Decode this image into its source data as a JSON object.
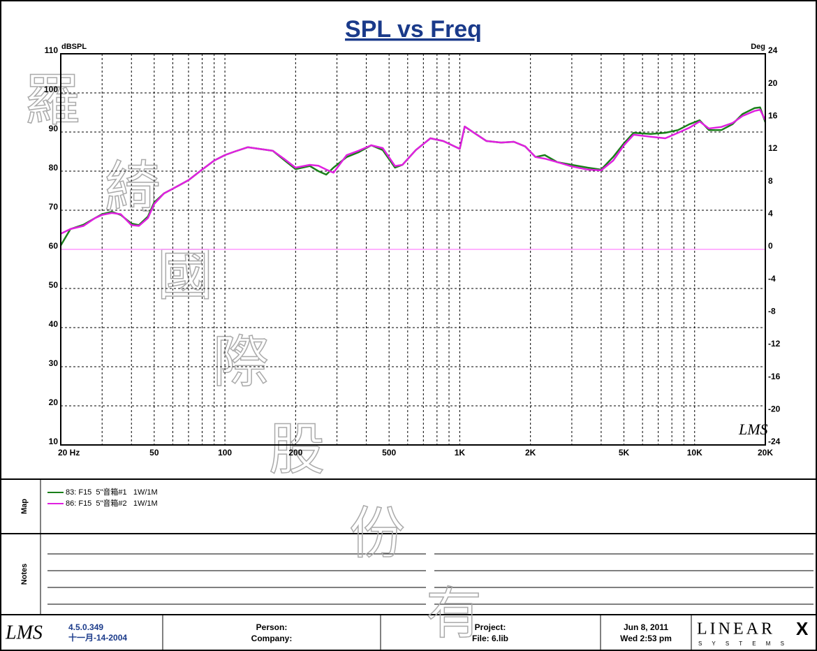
{
  "chart_data": {
    "type": "line",
    "title": "SPL vs Freq",
    "ylabel": "dBSPL",
    "y2label": "Deg",
    "logo": "LMS",
    "xscale": "log",
    "grid": true,
    "xlim": [
      20,
      20000
    ],
    "xticks": [
      {
        "value": 20,
        "label": "20  Hz"
      },
      50,
      100,
      200,
      500,
      {
        "value": 1000,
        "label": "1K"
      },
      {
        "value": 2000,
        "label": "2K"
      },
      {
        "value": 5000,
        "label": "5K"
      },
      {
        "value": 10000,
        "label": "10K"
      },
      {
        "value": 20000,
        "label": "20K"
      }
    ],
    "xminor": [
      30,
      40,
      60,
      70,
      80,
      90,
      300,
      400,
      600,
      700,
      800,
      900,
      3000,
      4000,
      6000,
      7000,
      8000,
      9000
    ],
    "ylim": [
      10,
      110
    ],
    "yticks": [
      10,
      20,
      30,
      40,
      50,
      60,
      70,
      80,
      90,
      100,
      110
    ],
    "y2lim": [
      -24,
      24
    ],
    "y2ticks": [
      -24,
      -20,
      -16,
      -12,
      -8,
      -4,
      0,
      4,
      8,
      12,
      16,
      20,
      24
    ],
    "y2_zero_color": "#ff99ff",
    "x": [
      20,
      22,
      25,
      28,
      30,
      33,
      36,
      40,
      43,
      47,
      50,
      55,
      60,
      70,
      80,
      90,
      100,
      110,
      125,
      140,
      160,
      180,
      200,
      230,
      250,
      270,
      290,
      330,
      370,
      420,
      470,
      530,
      570,
      650,
      750,
      850,
      1000,
      1050,
      1150,
      1300,
      1500,
      1700,
      1900,
      2100,
      2300,
      2600,
      3000,
      3500,
      4000,
      4500,
      5000,
      5500,
      6500,
      7500,
      8500,
      9500,
      10500,
      11500,
      13000,
      14500,
      16000,
      18000,
      19000,
      20000
    ],
    "series": [
      {
        "name": "83: F15  5\"音箱#1   1W/1M",
        "color": "#1a7f1a",
        "values": [
          61,
          65.2,
          66.3,
          68,
          69,
          69.6,
          68.8,
          66.6,
          66.2,
          68.4,
          72,
          74.3,
          75.5,
          77.7,
          80.4,
          82.7,
          84.1,
          85,
          86.1,
          85.7,
          85.2,
          82.7,
          80.5,
          81.3,
          80,
          79.1,
          80.9,
          83.6,
          84.8,
          86.6,
          85.4,
          80.9,
          81.6,
          85.4,
          88.4,
          87.7,
          85.7,
          91.4,
          89.8,
          87.7,
          87.3,
          87.5,
          86.3,
          83.6,
          84.1,
          82.3,
          81.6,
          80.9,
          80.4,
          83.6,
          87.1,
          89.8,
          89.5,
          89.8,
          90.5,
          92,
          93,
          90.5,
          90.5,
          92,
          94.6,
          96.1,
          96.3,
          92.5
        ]
      },
      {
        "name": "86: F15  5\"音箱#2   1W/1M",
        "color": "#e020e0",
        "values": [
          64,
          65.2,
          66,
          68,
          68.8,
          69.3,
          69,
          66.2,
          66,
          68,
          71.6,
          74.3,
          75.5,
          77.7,
          80.4,
          82.7,
          84.1,
          85,
          86.1,
          85.7,
          85.2,
          83,
          80.9,
          81.6,
          81.4,
          80.4,
          79.6,
          84.1,
          85.2,
          86.6,
          85.9,
          81.3,
          81.6,
          85.4,
          88.4,
          87.7,
          85.7,
          91.4,
          89.8,
          87.7,
          87.3,
          87.5,
          86.3,
          83.6,
          83.2,
          82.3,
          81.2,
          80.4,
          80.2,
          82.7,
          86.6,
          89.3,
          88.8,
          88.4,
          89.8,
          91.1,
          92.7,
          90.9,
          91.3,
          92.3,
          94.1,
          95.4,
          95.7,
          93
        ]
      }
    ]
  },
  "watermark": [
    "羅",
    "綺",
    "國",
    "際",
    "股",
    "份",
    "有"
  ],
  "sections": {
    "map": "Map",
    "notes": "Notes"
  },
  "footer": {
    "logo": "LMS",
    "version": "4.5.0.349",
    "build_date": "十一月-14-2004",
    "person": "Person:",
    "company": "Company:",
    "project": "Project:",
    "file": "File: 6.lib",
    "date": "Jun  8, 2011",
    "time": "Wed  2:53 pm",
    "brand": "LINEAR",
    "brand_x": "X",
    "brand_sub": "S Y S T E M S"
  }
}
